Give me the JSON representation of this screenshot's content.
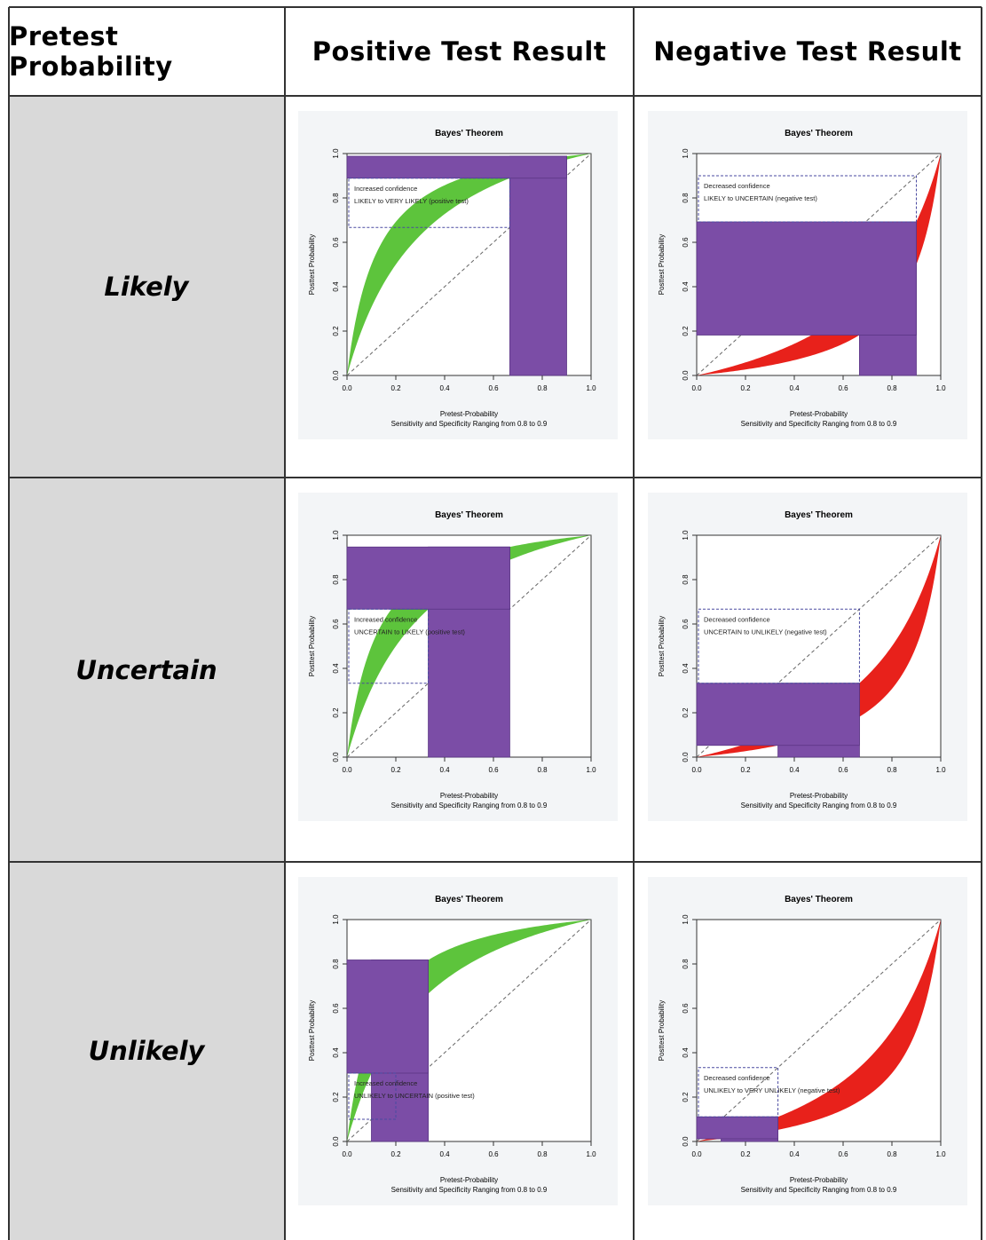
{
  "table": {
    "headers": [
      "Pretest Probability",
      "Positive Test Result",
      "Negative Test Result"
    ],
    "rows": [
      {
        "label": "Likely"
      },
      {
        "label": "Uncertain"
      },
      {
        "label": "Unlikely"
      }
    ]
  },
  "colors": {
    "positive_band": "#5dc43c",
    "negative_band": "#e8211b",
    "box": "#7b4da6",
    "plot_bg": "#f3f5f7"
  },
  "chart_data": [
    {
      "id": "likely-positive",
      "type": "area",
      "title": "Bayes' Theorem",
      "xlabel": "Pretest-Probability",
      "ylabel": "Posttest Probability",
      "subtitle": "Sensitivity and Specificity Ranging from 0.8 to 0.9",
      "xlim": [
        0,
        1
      ],
      "ylim": [
        0,
        1
      ],
      "xticks": [
        "0.0",
        "0.2",
        "0.4",
        "0.6",
        "0.8",
        "1.0"
      ],
      "yticks": [
        "0.0",
        "0.2",
        "0.4",
        "0.6",
        "0.8",
        "1.0"
      ],
      "test": "positive",
      "sens_spec_range": [
        0.8,
        0.9
      ],
      "pretest_range": [
        0.667,
        0.9
      ],
      "posttest_range": [
        0.889,
        0.988
      ],
      "annotation": [
        "Increased confidence",
        "LIKELY to VERY LIKELY (positive test)"
      ]
    },
    {
      "id": "likely-negative",
      "type": "area",
      "title": "Bayes' Theorem",
      "xlabel": "Pretest-Probability",
      "ylabel": "Posttest Probability",
      "subtitle": "Sensitivity and Specificity Ranging from 0.8 to 0.9",
      "xlim": [
        0,
        1
      ],
      "ylim": [
        0,
        1
      ],
      "xticks": [
        "0.0",
        "0.2",
        "0.4",
        "0.6",
        "0.8",
        "1.0"
      ],
      "yticks": [
        "0.0",
        "0.2",
        "0.4",
        "0.6",
        "0.8",
        "1.0"
      ],
      "test": "negative",
      "sens_spec_range": [
        0.8,
        0.9
      ],
      "pretest_range": [
        0.667,
        0.9
      ],
      "posttest_range": [
        0.182,
        0.692
      ],
      "annotation": [
        "Decreased confidence",
        "LIKELY to UNCERTAIN (negative test)"
      ]
    },
    {
      "id": "uncertain-positive",
      "type": "area",
      "title": "Bayes' Theorem",
      "xlabel": "Pretest-Probability",
      "ylabel": "Posttest Probability",
      "subtitle": "Sensitivity and Specificity Ranging from 0.8 to 0.9",
      "xlim": [
        0,
        1
      ],
      "ylim": [
        0,
        1
      ],
      "xticks": [
        "0.0",
        "0.2",
        "0.4",
        "0.6",
        "0.8",
        "1.0"
      ],
      "yticks": [
        "0.0",
        "0.2",
        "0.4",
        "0.6",
        "0.8",
        "1.0"
      ],
      "test": "positive",
      "sens_spec_range": [
        0.8,
        0.9
      ],
      "pretest_range": [
        0.333,
        0.667
      ],
      "posttest_range": [
        0.667,
        0.947
      ],
      "annotation": [
        "Increased confidence",
        "UNCERTAIN to LIKELY (positive test)"
      ]
    },
    {
      "id": "uncertain-negative",
      "type": "area",
      "title": "Bayes' Theorem",
      "xlabel": "Pretest-Probability",
      "ylabel": "Posttest Probability",
      "subtitle": "Sensitivity and Specificity Ranging from 0.8 to 0.9",
      "xlim": [
        0,
        1
      ],
      "ylim": [
        0,
        1
      ],
      "xticks": [
        "0.0",
        "0.2",
        "0.4",
        "0.6",
        "0.8",
        "1.0"
      ],
      "yticks": [
        "0.0",
        "0.2",
        "0.4",
        "0.6",
        "0.8",
        "1.0"
      ],
      "test": "negative",
      "sens_spec_range": [
        0.8,
        0.9
      ],
      "pretest_range": [
        0.333,
        0.667
      ],
      "posttest_range": [
        0.053,
        0.333
      ],
      "annotation": [
        "Decreased confidence",
        "UNCERTAIN to UNLIKELY (negative test)"
      ]
    },
    {
      "id": "unlikely-positive",
      "type": "area",
      "title": "Bayes' Theorem",
      "xlabel": "Pretest-Probability",
      "ylabel": "Posttest Probability",
      "subtitle": "Sensitivity and Specificity Ranging from 0.8 to 0.9",
      "xlim": [
        0,
        1
      ],
      "ylim": [
        0,
        1
      ],
      "xticks": [
        "0.0",
        "0.2",
        "0.4",
        "0.6",
        "0.8",
        "1.0"
      ],
      "yticks": [
        "0.0",
        "0.2",
        "0.4",
        "0.6",
        "0.8",
        "1.0"
      ],
      "test": "positive",
      "sens_spec_range": [
        0.8,
        0.9
      ],
      "pretest_range": [
        0.1,
        0.333
      ],
      "posttest_range": [
        0.308,
        0.818
      ],
      "annotation": [
        "Increased confidence",
        "UNLIKELY to UNCERTAIN (positive test)"
      ]
    },
    {
      "id": "unlikely-negative",
      "type": "area",
      "title": "Bayes' Theorem",
      "xlabel": "Pretest-Probability",
      "ylabel": "Posttest Probability",
      "subtitle": "Sensitivity and Specificity Ranging from 0.8 to 0.9",
      "xlim": [
        0,
        1
      ],
      "ylim": [
        0,
        1
      ],
      "xticks": [
        "0.0",
        "0.2",
        "0.4",
        "0.6",
        "0.8",
        "1.0"
      ],
      "yticks": [
        "0.0",
        "0.2",
        "0.4",
        "0.6",
        "0.8",
        "1.0"
      ],
      "test": "negative",
      "sens_spec_range": [
        0.8,
        0.9
      ],
      "pretest_range": [
        0.1,
        0.333
      ],
      "posttest_range": [
        0.012,
        0.111
      ],
      "annotation": [
        "Decreased confidence",
        "UNLIKELY to VERY UNLIKELY (negative test)"
      ]
    }
  ]
}
